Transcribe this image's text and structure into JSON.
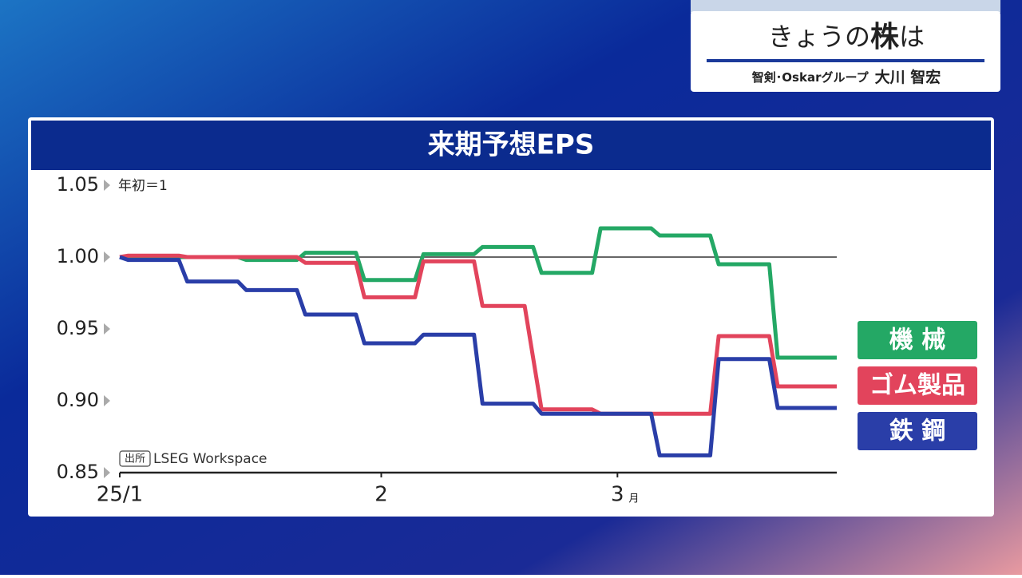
{
  "header": {
    "title_pre": "きょうの",
    "title_bold": "株",
    "title_post": "は",
    "affiliation": "智剣･Oskarグループ",
    "name": "大川 智宏"
  },
  "chart_data": {
    "type": "line",
    "title": "来期予想EPS",
    "y_note": "年初＝1",
    "source_tag": "出所",
    "source": "LSEG Workspace",
    "xlim": [
      0,
      85
    ],
    "xticks": [
      {
        "value": 0,
        "label": "25/1"
      },
      {
        "value": 31,
        "label": "2"
      },
      {
        "value": 59,
        "label": "3"
      }
    ],
    "x_unit": "月",
    "ylim": [
      0.85,
      1.05
    ],
    "yticks": [
      1.05,
      {
        "value": 1,
        "label": "1.00"
      },
      0.95,
      {
        "value": 0.9,
        "label": "0.90"
      },
      0.85
    ],
    "reference_line": 1,
    "series": [
      {
        "name": "機 械",
        "color": "#24a865",
        "x": [
          0,
          14,
          15,
          21,
          22,
          28,
          29,
          35,
          36,
          42,
          43,
          49,
          50,
          56,
          57,
          63,
          64,
          70,
          71,
          77,
          78,
          85
        ],
        "values": [
          1.0,
          1.0,
          0.998,
          0.998,
          1.003,
          1.003,
          0.984,
          0.984,
          1.002,
          1.002,
          1.007,
          1.007,
          0.989,
          0.989,
          1.02,
          1.02,
          1.015,
          1.015,
          0.995,
          0.995,
          0.93,
          0.93
        ]
      },
      {
        "name": "ゴム製品",
        "color": "#e2445c",
        "x": [
          0,
          1,
          7,
          8,
          21,
          22,
          28,
          29,
          35,
          36,
          42,
          43,
          48,
          50,
          56,
          57,
          70,
          71,
          77,
          78,
          85
        ],
        "values": [
          1.0,
          1.001,
          1.001,
          1.0,
          1.0,
          0.996,
          0.996,
          0.972,
          0.972,
          0.997,
          0.997,
          0.966,
          0.966,
          0.894,
          0.894,
          0.891,
          0.891,
          0.945,
          0.945,
          0.91,
          0.91
        ]
      },
      {
        "name": "鉄 鋼",
        "color": "#2a3ea8",
        "x": [
          0,
          1,
          7,
          8,
          14,
          15,
          21,
          22,
          28,
          29,
          35,
          36,
          42,
          43,
          49,
          50,
          63,
          64,
          70,
          71,
          77,
          78,
          85
        ],
        "values": [
          1.0,
          0.998,
          0.998,
          0.983,
          0.983,
          0.977,
          0.977,
          0.96,
          0.96,
          0.94,
          0.94,
          0.946,
          0.946,
          0.898,
          0.898,
          0.891,
          0.891,
          0.862,
          0.862,
          0.929,
          0.929,
          0.895,
          0.895
        ]
      }
    ]
  }
}
